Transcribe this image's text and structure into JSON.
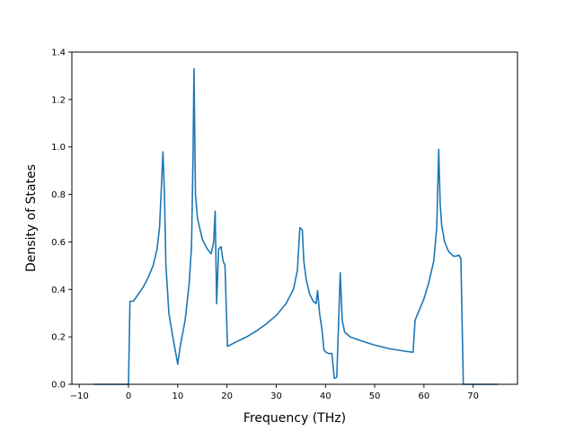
{
  "chart_data": {
    "type": "line",
    "title": "",
    "xlabel": "Frequency (THz)",
    "ylabel": "Density of States",
    "xlim": [
      -11.5,
      79
    ],
    "ylim": [
      0,
      1.4
    ],
    "xticks": [
      -10,
      0,
      10,
      20,
      30,
      40,
      50,
      60,
      70
    ],
    "yticks": [
      0.0,
      0.2,
      0.4,
      0.6,
      0.8,
      1.0,
      1.2,
      1.4
    ],
    "xtick_labels": [
      "−10",
      "0",
      "10",
      "20",
      "30",
      "40",
      "50",
      "60",
      "70"
    ],
    "ytick_labels": [
      "0.0",
      "0.2",
      "0.4",
      "0.6",
      "0.8",
      "1.0",
      "1.2",
      "1.4"
    ],
    "grid": false,
    "legend": "none",
    "colors": {
      "line": "#1f77b4"
    },
    "series": [
      {
        "x": [
          -7,
          -0.3,
          0,
          0.3,
          1,
          2,
          3,
          4,
          5,
          5.8,
          6.3,
          6.7,
          7.0,
          7.3,
          7.6,
          8.2,
          9,
          10.0,
          10.5,
          11.5,
          12.3,
          12.8,
          13.1,
          13.3,
          13.6,
          14.0,
          15,
          16,
          16.8,
          17.3,
          17.6,
          17.9,
          18.3,
          18.8,
          19.2,
          19.6,
          20.1,
          22,
          24,
          26,
          28,
          30,
          32,
          33.5,
          34.3,
          34.8,
          35.3,
          35.6,
          36.1,
          36.8,
          37.5,
          38.1,
          38.4,
          38.8,
          39.3,
          39.7,
          40.1,
          40.6,
          41.3,
          41.8,
          42.3,
          43.0,
          43.4,
          43.9,
          45,
          47,
          50,
          53,
          56,
          57.8,
          58.2,
          59,
          60,
          61,
          62,
          62.6,
          63.0,
          63.3,
          63.6,
          64.2,
          65,
          66,
          66.5,
          67.1,
          67.5,
          68.0,
          68.3,
          69,
          75
        ],
        "y": [
          0,
          0,
          0,
          0.35,
          0.35,
          0.38,
          0.41,
          0.45,
          0.5,
          0.57,
          0.66,
          0.84,
          0.98,
          0.8,
          0.5,
          0.3,
          0.2,
          0.085,
          0.16,
          0.27,
          0.42,
          0.58,
          0.95,
          1.33,
          0.8,
          0.7,
          0.61,
          0.57,
          0.55,
          0.6,
          0.73,
          0.34,
          0.57,
          0.58,
          0.52,
          0.5,
          0.16,
          0.18,
          0.2,
          0.225,
          0.255,
          0.29,
          0.34,
          0.4,
          0.48,
          0.66,
          0.65,
          0.52,
          0.44,
          0.38,
          0.35,
          0.34,
          0.395,
          0.3,
          0.23,
          0.145,
          0.135,
          0.13,
          0.13,
          0.025,
          0.03,
          0.47,
          0.27,
          0.22,
          0.2,
          0.185,
          0.165,
          0.15,
          0.14,
          0.135,
          0.27,
          0.31,
          0.36,
          0.43,
          0.52,
          0.66,
          0.99,
          0.76,
          0.67,
          0.6,
          0.56,
          0.54,
          0.54,
          0.545,
          0.53,
          0.0,
          0,
          0,
          0
        ]
      }
    ]
  }
}
